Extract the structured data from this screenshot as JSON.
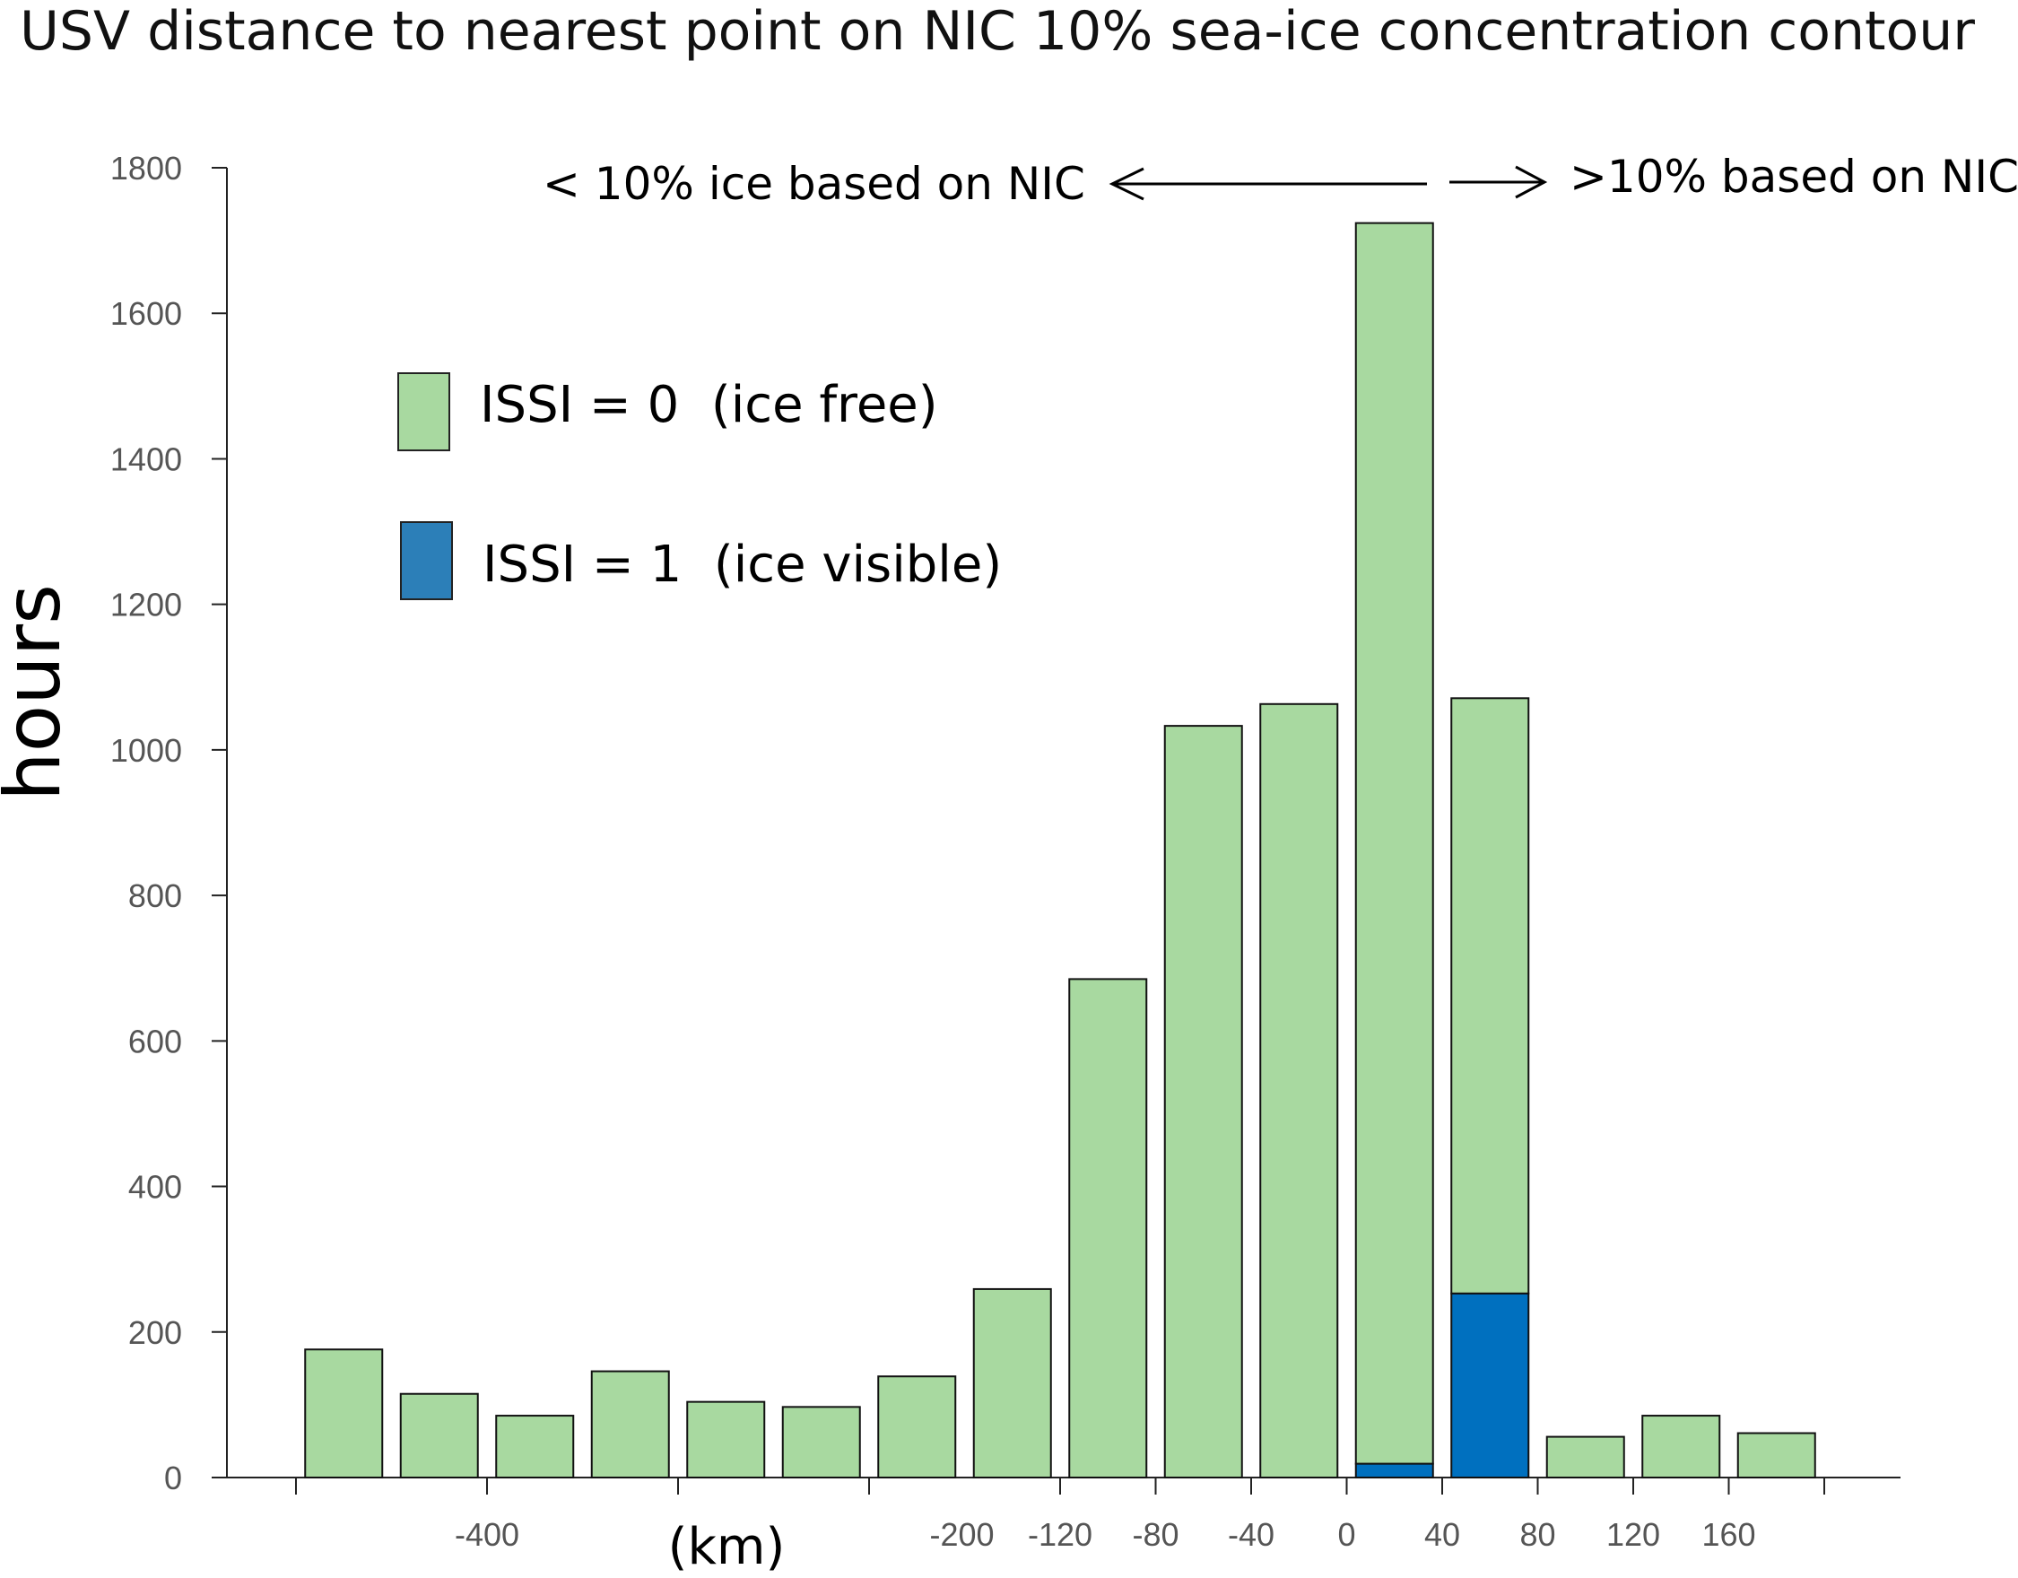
{
  "chart_data": {
    "type": "bar",
    "title": "USV distance to nearest point on NIC 10% sea-ice concentration contour",
    "xlabel": "(km)",
    "ylabel": "hours",
    "ylim": [
      0,
      1800
    ],
    "yticks": [
      "0",
      "200",
      "400",
      "600",
      "800",
      "1000",
      "1200",
      "1400",
      "1600",
      "1800"
    ],
    "xtick_labels": [
      "-400",
      "-200",
      "-120",
      "-80",
      "-40",
      "0",
      "40",
      "80",
      "120",
      "160"
    ],
    "annotations": {
      "left": "< 10% ice based on NIC",
      "right": ">10% based on NIC"
    },
    "stacked": true,
    "series": [
      {
        "name": "ISSI = 0  (ice free)",
        "color": "#a8d9a0",
        "values": [
          176,
          115,
          85,
          146,
          104,
          97,
          139,
          259,
          685,
          1033,
          1063,
          1705,
          818,
          56,
          85,
          61
        ]
      },
      {
        "name": "ISSI = 1  (ice visible)",
        "color": "#0070bf",
        "values": [
          0,
          0,
          0,
          0,
          0,
          0,
          0,
          0,
          0,
          0,
          0,
          19,
          253,
          0,
          0,
          0
        ]
      }
    ],
    "grid": false,
    "legend_position": "upper-left"
  }
}
